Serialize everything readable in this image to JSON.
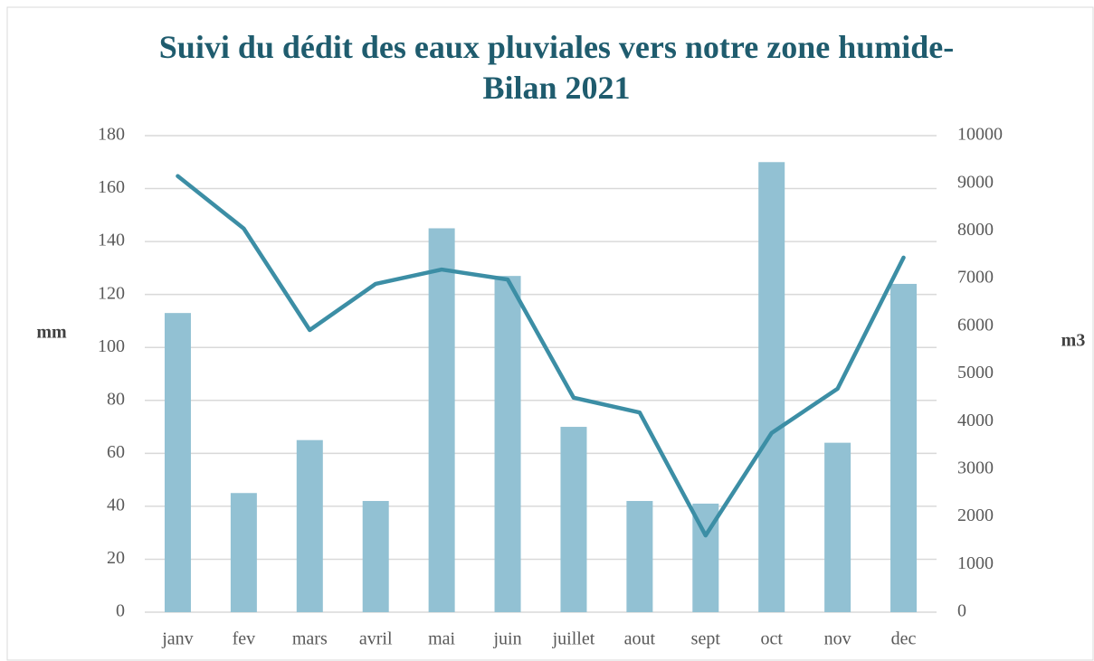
{
  "chart_data": {
    "type": "bar",
    "title": "Suivi du dédit des eaux pluviales vers notre zone humide- Bilan 2021",
    "y_label": "mm",
    "y2_label": "m3",
    "categories": [
      "janv",
      "fev",
      "mars",
      "avril",
      "mai",
      "juin",
      "juillet",
      "aout",
      "sept",
      "oct",
      "nov",
      "dec"
    ],
    "series": [
      {
        "type": "bar",
        "color": "#92c1d3",
        "values": [
          113,
          45,
          65,
          42,
          145,
          127,
          70,
          42,
          41,
          170,
          64,
          124
        ]
      },
      {
        "type": "line",
        "color": "#3c8ea5",
        "axis": "y2",
        "values": [
          9150,
          8050,
          5920,
          6890,
          7190,
          6980,
          4500,
          4190,
          1610,
          3760,
          4690,
          7440
        ]
      }
    ],
    "ylim": [
      0,
      180
    ],
    "yticks": [
      0,
      20,
      40,
      60,
      80,
      100,
      120,
      140,
      160,
      180
    ],
    "y2lim": [
      0,
      10000
    ],
    "y2ticks": [
      0,
      1000,
      2000,
      3000,
      4000,
      5000,
      6000,
      7000,
      8000,
      9000,
      10000
    ],
    "grid": true
  }
}
